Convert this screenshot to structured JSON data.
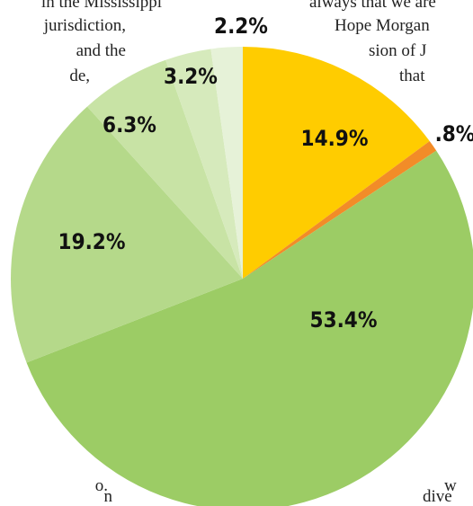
{
  "chart_data": {
    "type": "pie",
    "categories": [
      null,
      null,
      null,
      null,
      null,
      null,
      null
    ],
    "values": [
      14.9,
      0.8,
      53.4,
      19.2,
      6.3,
      3.2,
      2.2
    ],
    "value_labels": [
      "14.9%",
      ".8%",
      "53.4%",
      "19.2%",
      "6.3%",
      "3.2%",
      "2.2%"
    ],
    "colors": [
      "#ffcc00",
      "#f28c28",
      "#9ccc65",
      "#b5d98a",
      "#c8e3a5",
      "#d6eabc",
      "#e6f2d8"
    ],
    "annotations": [
      "in the Mississippi",
      "jurisdiction,",
      "and the",
      "de,",
      "o.",
      "n",
      "always that we are",
      "Hope Morgan",
      "sion of J",
      "that",
      "w",
      "dive"
    ]
  }
}
